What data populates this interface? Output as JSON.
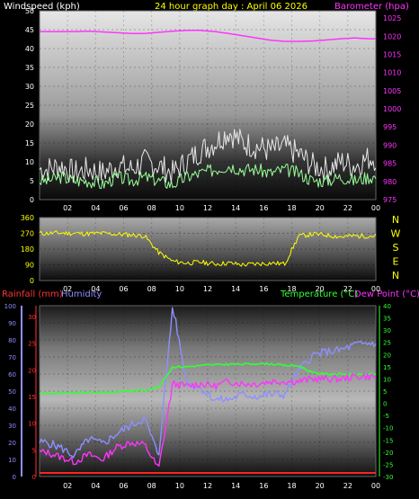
{
  "chart_data": [
    {
      "type": "line",
      "panel": "wind-barometer",
      "title": "24 hour graph day : April 06 2026",
      "ylabel_left": "Windspeed (kph)",
      "ylabel_right": "Barometer (hpa)",
      "ylim_left": [
        0,
        50
      ],
      "ylim_right": [
        975,
        1027
      ],
      "yticks_left": [
        "0",
        "5",
        "10",
        "15",
        "20",
        "25",
        "30",
        "35",
        "40",
        "45",
        "50"
      ],
      "yticks_right": [
        "975",
        "980",
        "985",
        "990",
        "995",
        "1000",
        "1005",
        "1010",
        "1015",
        "1020",
        "1025"
      ],
      "x_hours": [
        1,
        2,
        3,
        4,
        5,
        6,
        7,
        8,
        9,
        10,
        11,
        12,
        13,
        14,
        15,
        16,
        17,
        18,
        19,
        20,
        21,
        22,
        23,
        24
      ],
      "xticks": [
        "02",
        "04",
        "06",
        "08",
        "10",
        "12",
        "14",
        "16",
        "18",
        "20",
        "22",
        "00"
      ],
      "series": [
        {
          "values_hourly": [
            44.5,
            44.5,
            44.5,
            44.6,
            44.4,
            44.2,
            44.0,
            44.0,
            44.3,
            44.6,
            44.8,
            44.8,
            44.5,
            44.0,
            43.4,
            42.8,
            42.2,
            41.9,
            41.9,
            42.0,
            42.3,
            42.6,
            42.8,
            42.6
          ]
        },
        {
          "values_hourly": [
            8,
            9,
            7,
            8,
            7,
            9,
            8,
            10,
            9,
            7,
            10,
            13,
            15,
            18,
            15,
            14,
            13,
            14,
            12,
            9,
            8,
            10,
            9,
            11
          ]
        },
        {
          "values_hourly": [
            5,
            6,
            5,
            5,
            4,
            6,
            5,
            6,
            5,
            4,
            6,
            7,
            8,
            9,
            8,
            8,
            7,
            8,
            7,
            5,
            5,
            6,
            5,
            6
          ]
        }
      ],
      "colors": {
        "barometer": "#ff33ff",
        "gust": "#e8e8e8",
        "wind_avg": "#99ff99"
      }
    },
    {
      "type": "line",
      "panel": "wind-direction",
      "ylim": [
        0,
        360
      ],
      "yticks": [
        "0",
        "90",
        "180",
        "270",
        "360"
      ],
      "compass_labels": [
        "N",
        "W",
        "S",
        "E",
        "N"
      ],
      "xticks": [
        "02",
        "04",
        "06",
        "08",
        "10",
        "12",
        "14",
        "16",
        "18",
        "20",
        "22",
        "00"
      ],
      "series": [
        {
          "values_hourly": [
            270,
            272,
            270,
            268,
            270,
            265,
            262,
            255,
            160,
            110,
            100,
            105,
            95,
            100,
            90,
            95,
            100,
            95,
            255,
            265,
            260,
            250,
            255,
            255
          ]
        }
      ],
      "colors": {
        "direction": "#ffff00"
      }
    },
    {
      "type": "line",
      "panel": "rain-humidity-temp",
      "ylabel_left": "Rainfall (mm)",
      "ylabel_left2": "Humidity",
      "ylabel_right": "Temperature (°C)",
      "ylabel_right2": "Dew Point (°C)",
      "yticks_humidity": [
        "0",
        "10",
        "20",
        "30",
        "40",
        "50",
        "60",
        "70",
        "80",
        "90",
        "100"
      ],
      "yticks_rain": [
        "0",
        "5",
        "10",
        "15",
        "20",
        "25",
        "30"
      ],
      "yticks_temp": [
        "-30",
        "-25",
        "-20",
        "-15",
        "-10",
        "-5",
        "0",
        "5",
        "10",
        "15",
        "20",
        "25",
        "30",
        "35",
        "40"
      ],
      "ylim_humidity": [
        0,
        100
      ],
      "ylim_temp": [
        -30,
        40
      ],
      "xticks": [
        "02",
        "04",
        "06",
        "08",
        "10",
        "12",
        "14",
        "16",
        "18",
        "20",
        "22",
        "00"
      ],
      "series": [
        {
          "values_hourly": [
            -20,
            -22,
            -24,
            -21,
            -23,
            -18,
            -16,
            -17,
            -27,
            8,
            7,
            8,
            7,
            9,
            8,
            8,
            9,
            9,
            9,
            10,
            10,
            10,
            11,
            11
          ]
        },
        {
          "values_hourly": [
            4.0,
            4.1,
            4.2,
            4.4,
            4.5,
            4.7,
            5.0,
            5.5,
            6.5,
            15,
            15,
            15.5,
            15.8,
            16,
            16,
            16.3,
            16.2,
            15.5,
            15.4,
            12.5,
            12,
            12,
            11.8,
            11.8
          ]
        },
        {
          "values_hourly": [
            20,
            17,
            12,
            22,
            19,
            25,
            30,
            34,
            12,
            100,
            55,
            52,
            45,
            45,
            48,
            47,
            48,
            48,
            62,
            71,
            73,
            74,
            77,
            78
          ]
        },
        {
          "values_hourly": [
            0,
            0,
            0,
            0,
            0,
            0,
            0,
            0,
            0,
            0,
            0,
            0,
            0,
            0,
            0,
            0,
            0,
            0,
            0,
            0,
            0,
            0,
            0,
            0
          ]
        }
      ],
      "colors": {
        "humidity": "#8f8fff",
        "temperature": "#33ff33",
        "dewpoint": "#ff33ff",
        "rainfall": "#ff2222"
      }
    }
  ]
}
